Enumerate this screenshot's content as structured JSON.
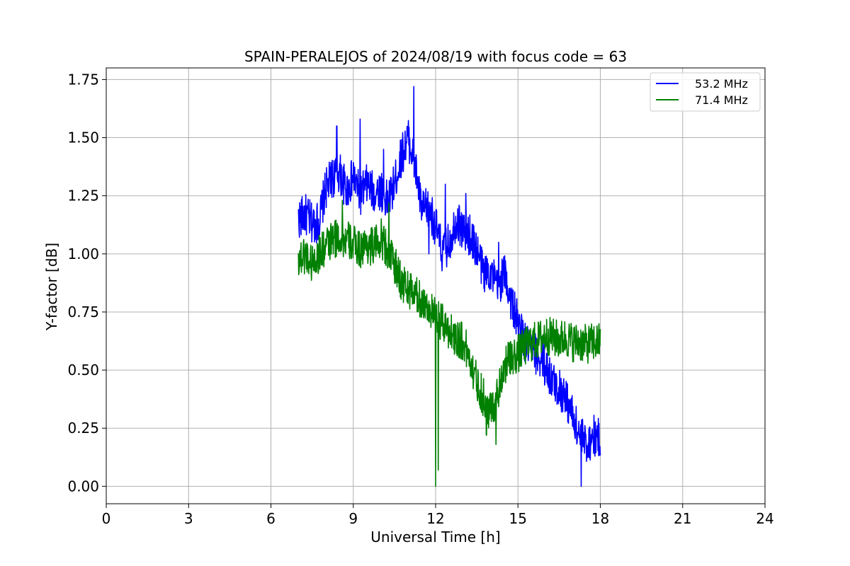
{
  "chart_data": {
    "type": "line",
    "title": "SPAIN-PERALEJOS of 2024/08/19 with focus code = 63",
    "xlabel": "Universal Time [h]",
    "ylabel": "Y-factor [dB]",
    "xlim": [
      0,
      24
    ],
    "ylim": [
      -0.075,
      1.8
    ],
    "xticks": [
      0,
      3,
      6,
      9,
      12,
      15,
      18,
      21,
      24
    ],
    "xtick_labels": [
      "0",
      "3",
      "6",
      "9",
      "12",
      "15",
      "18",
      "21",
      "24"
    ],
    "yticks": [
      0.0,
      0.25,
      0.5,
      0.75,
      1.0,
      1.25,
      1.5,
      1.75
    ],
    "ytick_labels": [
      "0.00",
      "0.25",
      "0.50",
      "0.75",
      "1.00",
      "1.25",
      "1.50",
      "1.75"
    ],
    "grid": true,
    "legend_position": "top-right",
    "series": [
      {
        "name": "53.2 MHz",
        "color": "#0000ff",
        "x": [
          7.0,
          7.25,
          7.5,
          7.75,
          8.0,
          8.25,
          8.5,
          8.75,
          9.0,
          9.25,
          9.5,
          9.75,
          10.0,
          10.25,
          10.5,
          10.75,
          11.0,
          11.25,
          11.5,
          11.75,
          12.0,
          12.25,
          12.5,
          12.75,
          13.0,
          13.25,
          13.5,
          13.75,
          14.0,
          14.25,
          14.5,
          14.75,
          15.0,
          15.25,
          15.5,
          15.75,
          16.0,
          16.25,
          16.5,
          16.75,
          17.0,
          17.25,
          17.5,
          17.75,
          18.0
        ],
        "y": [
          1.15,
          1.17,
          1.13,
          1.14,
          1.28,
          1.33,
          1.35,
          1.27,
          1.33,
          1.25,
          1.3,
          1.26,
          1.28,
          1.22,
          1.3,
          1.42,
          1.5,
          1.38,
          1.18,
          1.2,
          1.12,
          1.0,
          1.05,
          1.15,
          1.1,
          1.08,
          1.02,
          0.92,
          0.93,
          0.85,
          0.92,
          0.8,
          0.7,
          0.62,
          0.58,
          0.56,
          0.52,
          0.45,
          0.42,
          0.38,
          0.3,
          0.22,
          0.18,
          0.22,
          0.2
        ],
        "spike_x": [
          8.4,
          9.25,
          10.1,
          11.2,
          11.75,
          12.35,
          13.1,
          14.3,
          17.3
        ],
        "spike_y": [
          1.55,
          1.58,
          1.45,
          1.72,
          1.0,
          1.3,
          1.26,
          1.05,
          0.0
        ]
      },
      {
        "name": "71.4 MHz",
        "color": "#008000",
        "x": [
          7.0,
          7.25,
          7.5,
          7.75,
          8.0,
          8.25,
          8.5,
          8.75,
          9.0,
          9.25,
          9.5,
          9.75,
          10.0,
          10.25,
          10.5,
          10.75,
          11.0,
          11.25,
          11.5,
          11.75,
          12.0,
          12.25,
          12.5,
          12.75,
          13.0,
          13.25,
          13.5,
          13.75,
          14.0,
          14.25,
          14.5,
          14.75,
          15.0,
          15.25,
          15.5,
          15.75,
          16.0,
          16.25,
          16.5,
          16.75,
          17.0,
          17.25,
          17.5,
          17.75,
          18.0
        ],
        "y": [
          0.98,
          1.0,
          0.96,
          1.0,
          1.03,
          1.06,
          1.07,
          1.06,
          1.04,
          1.02,
          1.04,
          1.03,
          1.07,
          1.02,
          0.95,
          0.88,
          0.85,
          0.82,
          0.8,
          0.77,
          0.72,
          0.7,
          0.67,
          0.64,
          0.62,
          0.55,
          0.45,
          0.38,
          0.32,
          0.4,
          0.52,
          0.55,
          0.57,
          0.6,
          0.62,
          0.63,
          0.65,
          0.64,
          0.63,
          0.64,
          0.62,
          0.62,
          0.61,
          0.62,
          0.62
        ],
        "spike_x": [
          8.6,
          10.3,
          12.0,
          12.1,
          13.85,
          14.2
        ],
        "spike_y": [
          1.23,
          1.22,
          0.0,
          0.07,
          0.22,
          0.18
        ]
      }
    ]
  }
}
